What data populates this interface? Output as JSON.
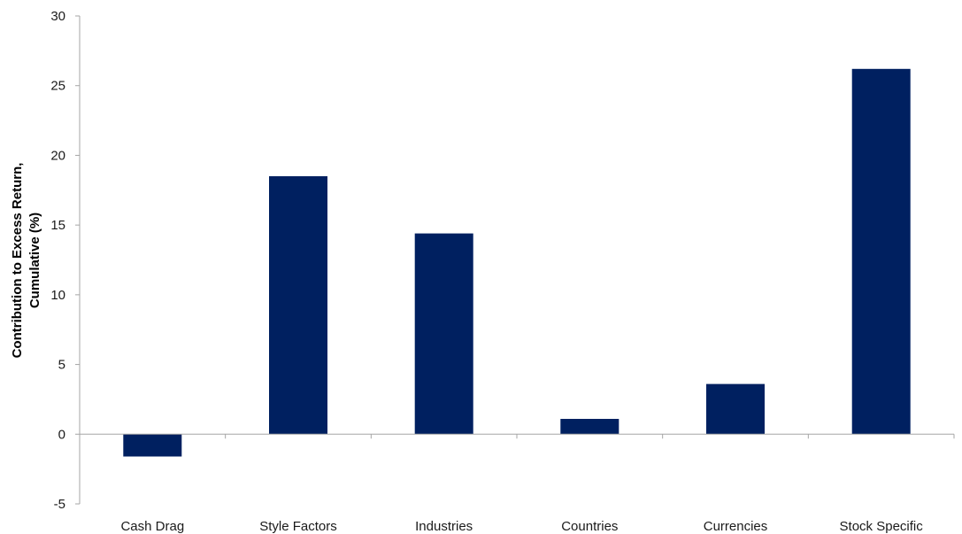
{
  "chart_data": {
    "type": "bar",
    "title": "",
    "xlabel": "",
    "ylabel_lines": [
      "Contribution to Excess Return,",
      "Cumulative (%)"
    ],
    "categories": [
      "Cash Drag",
      "Style Factors",
      "Industries",
      "Countries",
      "Currencies",
      "Stock Specific"
    ],
    "values": [
      -1.6,
      18.5,
      14.4,
      1.1,
      3.6,
      26.2
    ],
    "ylim": [
      -5,
      30
    ],
    "yticks": [
      -5,
      0,
      5,
      10,
      15,
      20,
      25,
      30
    ],
    "grid": false,
    "legend": "none",
    "bar_color": "#002060",
    "axis_color": "#a6a6a6"
  }
}
